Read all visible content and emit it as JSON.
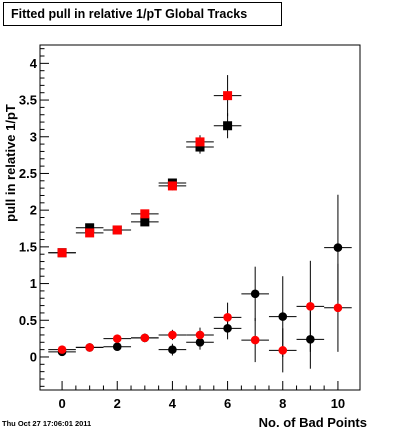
{
  "title": "Fitted pull in relative 1/pT  Global Tracks",
  "timestamp": "Thu Oct 27 17:06:01 2011",
  "chart_data": {
    "type": "scatter",
    "title": "Fitted pull in relative 1/pT  Global Tracks",
    "xlabel": "No. of Bad Points",
    "ylabel": "pull in relative 1/pT",
    "xlim": [
      -0.8,
      10.8
    ],
    "ylim": [
      -0.45,
      4.25
    ],
    "xticks": [
      0,
      2,
      4,
      6,
      8,
      10
    ],
    "yticks": [
      0,
      0.5,
      1,
      1.5,
      2,
      2.5,
      3,
      3.5,
      4
    ],
    "ytick_labels": [
      "0",
      "0.5",
      "1",
      "1.5",
      "2",
      "2.5",
      "3",
      "3.5",
      "4"
    ],
    "xtick_labels": [
      "0",
      "2",
      "4",
      "6",
      "8",
      "10"
    ],
    "grid": false,
    "series": [
      {
        "marker": "square",
        "color": "#000000",
        "x": [
          0,
          1,
          2,
          3,
          4,
          5,
          6
        ],
        "y": [
          1.42,
          1.76,
          1.73,
          1.84,
          2.37,
          2.86,
          3.15
        ],
        "yerr": [
          0.02,
          0.03,
          0.03,
          0.05,
          0.06,
          0.09,
          0.17
        ]
      },
      {
        "marker": "square",
        "color": "#ff0000",
        "x": [
          0,
          1,
          2,
          3,
          4,
          5,
          6
        ],
        "y": [
          1.42,
          1.69,
          1.73,
          1.95,
          2.33,
          2.93,
          3.56
        ],
        "yerr": [
          0.02,
          0.03,
          0.03,
          0.05,
          0.06,
          0.09,
          0.28
        ]
      },
      {
        "marker": "circle",
        "color": "#000000",
        "x": [
          0,
          1,
          2,
          3,
          4,
          5,
          6,
          7,
          8,
          9,
          10
        ],
        "y": [
          0.07,
          0.13,
          0.14,
          0.26,
          0.1,
          0.2,
          0.39,
          0.86,
          0.55,
          0.24,
          1.49
        ],
        "yerr": [
          0.02,
          0.03,
          0.05,
          0.06,
          0.08,
          0.1,
          0.15,
          0.37,
          0.55,
          0.4,
          0.72
        ]
      },
      {
        "marker": "circle",
        "color": "#ff0000",
        "x": [
          0,
          1,
          2,
          3,
          4,
          5,
          6,
          7,
          8,
          9,
          10
        ],
        "y": [
          0.1,
          0.13,
          0.25,
          0.26,
          0.3,
          0.3,
          0.54,
          0.23,
          0.09,
          0.69,
          0.67
        ],
        "yerr": [
          0.02,
          0.03,
          0.04,
          0.05,
          0.07,
          0.1,
          0.2,
          0.3,
          0.3,
          0.62,
          0.6
        ]
      }
    ]
  }
}
